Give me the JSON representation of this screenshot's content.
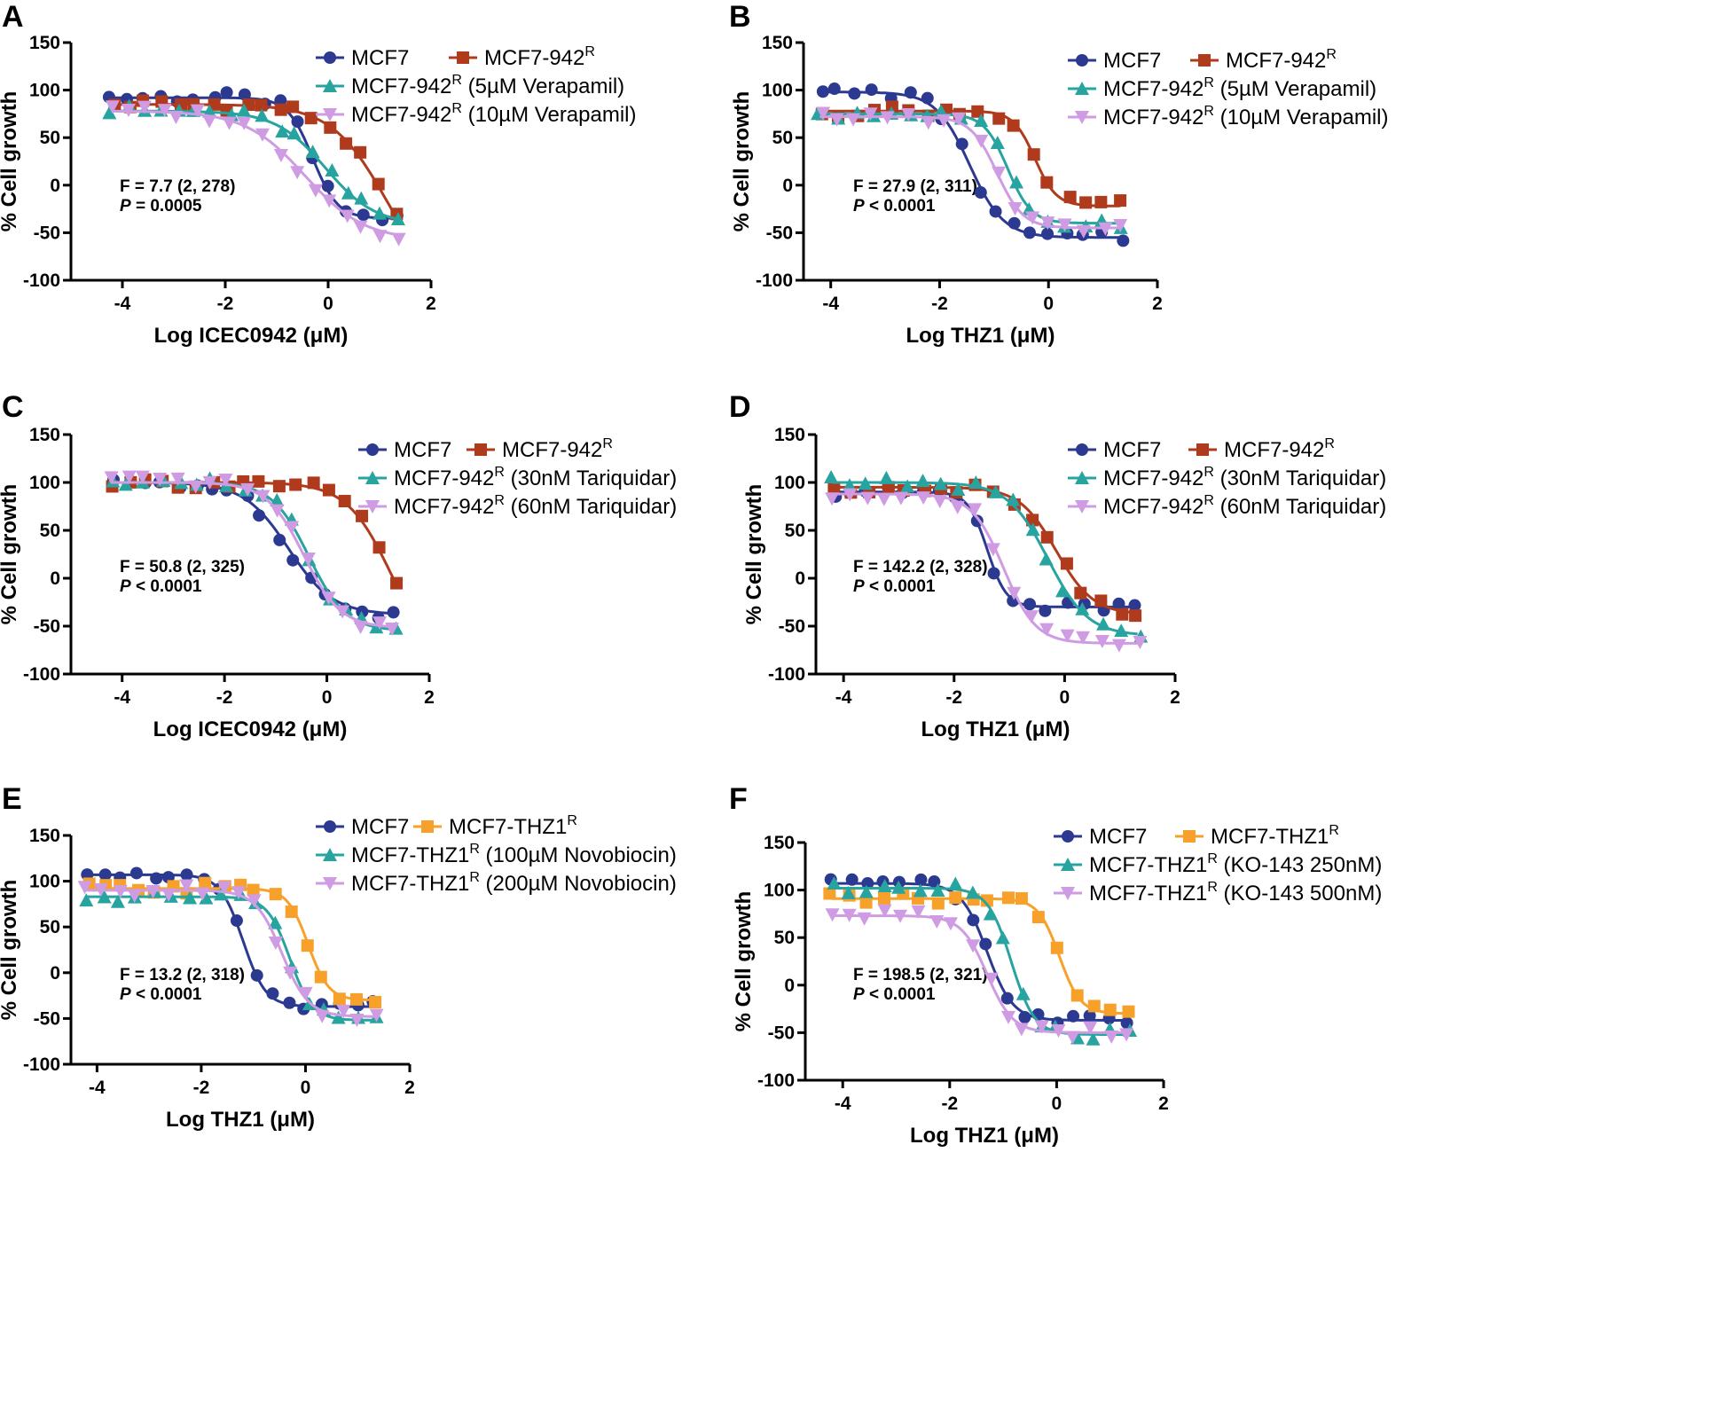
{
  "figure": {
    "panels": [
      "A",
      "B",
      "C",
      "D",
      "E",
      "F"
    ]
  },
  "chart_data": [
    {
      "panel": "A",
      "type": "line",
      "xlabel": "Log ICEC0942 (μM)",
      "ylabel": "% Cell growth",
      "xlim": [
        -5,
        2
      ],
      "ylim": [
        -100,
        150
      ],
      "xticks": [
        -4,
        -2,
        0,
        2
      ],
      "yticks": [
        150,
        100,
        50,
        0,
        -50,
        -100
      ],
      "stat_f": "F = 7.7 (2, 278)",
      "stat_p_label": "P",
      "stat_p_value": "= 0.0005",
      "series": [
        {
          "name": "MCF7",
          "legend_base": "MCF7",
          "legend_sup": "",
          "legend_suffix": "",
          "color": "#2b3990",
          "marker": "circle",
          "curve": {
            "top": 92,
            "bottom": -35,
            "ec50": -0.3,
            "hill": 1.8
          }
        },
        {
          "name": "MCF7-942R",
          "legend_base": "MCF7-942",
          "legend_sup": "R",
          "legend_suffix": "",
          "color": "#b03a1c",
          "marker": "square",
          "curve": {
            "top": 85,
            "bottom": -120,
            "ec50": 1.15,
            "hill": 0.8
          }
        },
        {
          "name": "MCF7-942R (5µM Verapamil)",
          "legend_base": "MCF7-942",
          "legend_sup": "R",
          "legend_suffix": " (5µM Verapamil)",
          "color": "#27a4a0",
          "marker": "triangle-up",
          "curve": {
            "top": 78,
            "bottom": -42,
            "ec50": -0.05,
            "hill": 0.9
          }
        },
        {
          "name": "MCF7-942R (10µM Verapamil)",
          "legend_base": "MCF7-942",
          "legend_sup": "R",
          "legend_suffix": " (10µM Verapamil)",
          "color": "#cf9be3",
          "marker": "triangle-down",
          "curve": {
            "top": 78,
            "bottom": -58,
            "ec50": -0.45,
            "hill": 0.75
          }
        }
      ]
    },
    {
      "panel": "B",
      "type": "line",
      "xlabel": "Log THZ1 (μM)",
      "ylabel": "% Cell growth",
      "xlim": [
        -4.5,
        2
      ],
      "ylim": [
        -100,
        150
      ],
      "xticks": [
        -4,
        -2,
        0,
        2
      ],
      "yticks": [
        150,
        100,
        50,
        0,
        -50,
        -100
      ],
      "stat_f": "F = 27.9 (2, 311)",
      "stat_p_label": "P",
      "stat_p_value": "< 0.0001",
      "series": [
        {
          "name": "MCF7",
          "legend_base": "MCF7",
          "legend_sup": "",
          "legend_suffix": "",
          "color": "#2b3990",
          "marker": "circle",
          "curve": {
            "top": 98,
            "bottom": -55,
            "ec50": -1.45,
            "hill": 1.4
          }
        },
        {
          "name": "MCF7-942R",
          "legend_base": "MCF7-942",
          "legend_sup": "R",
          "legend_suffix": "",
          "color": "#b03a1c",
          "marker": "square",
          "curve": {
            "top": 78,
            "bottom": -22,
            "ec50": -0.25,
            "hill": 2.2
          }
        },
        {
          "name": "MCF7-942R (5µM Verapamil)",
          "legend_base": "MCF7-942",
          "legend_sup": "R",
          "legend_suffix": " (5µM Verapamil)",
          "color": "#27a4a0",
          "marker": "triangle-up",
          "curve": {
            "top": 75,
            "bottom": -40,
            "ec50": -0.75,
            "hill": 2.0
          }
        },
        {
          "name": "MCF7-942R (10µM Verapamil)",
          "legend_base": "MCF7-942",
          "legend_sup": "R",
          "legend_suffix": " (10µM Verapamil)",
          "color": "#cf9be3",
          "marker": "triangle-down",
          "curve": {
            "top": 72,
            "bottom": -45,
            "ec50": -0.95,
            "hill": 1.8
          }
        }
      ]
    },
    {
      "panel": "C",
      "type": "line",
      "xlabel": "Log ICEC0942 (μM)",
      "ylabel": "% Cell growth",
      "xlim": [
        -5,
        2
      ],
      "ylim": [
        -100,
        150
      ],
      "xticks": [
        -4,
        -2,
        0,
        2
      ],
      "yticks": [
        150,
        100,
        50,
        0,
        -50,
        -100
      ],
      "stat_f": "F = 50.8 (2, 325)",
      "stat_p_label": "P",
      "stat_p_value": "< 0.0001",
      "series": [
        {
          "name": "MCF7",
          "legend_base": "MCF7",
          "legend_sup": "",
          "legend_suffix": "",
          "color": "#2b3990",
          "marker": "circle",
          "curve": {
            "top": 100,
            "bottom": -38,
            "ec50": -0.75,
            "hill": 1.0
          }
        },
        {
          "name": "MCF7-942R",
          "legend_base": "MCF7-942",
          "legend_sup": "R",
          "legend_suffix": "",
          "color": "#b03a1c",
          "marker": "square",
          "curve": {
            "top": 100,
            "bottom": -90,
            "ec50": 1.25,
            "hill": 1.0
          }
        },
        {
          "name": "MCF7-942R (30nM Tariquidar)",
          "legend_base": "MCF7-942",
          "legend_sup": "R",
          "legend_suffix": " (30nM Tariquidar)",
          "color": "#27a4a0",
          "marker": "triangle-up",
          "curve": {
            "top": 100,
            "bottom": -55,
            "ec50": -0.35,
            "hill": 1.2
          }
        },
        {
          "name": "MCF7-942R (60nM Tariquidar)",
          "legend_base": "MCF7-942",
          "legend_sup": "R",
          "legend_suffix": " (60nM Tariquidar)",
          "color": "#cf9be3",
          "marker": "triangle-down",
          "curve": {
            "top": 100,
            "bottom": -52,
            "ec50": -0.45,
            "hill": 1.2
          }
        }
      ]
    },
    {
      "panel": "D",
      "type": "line",
      "xlabel": "Log THZ1 (μM)",
      "ylabel": "% Cell growth",
      "xlim": [
        -4.5,
        2
      ],
      "ylim": [
        -100,
        150
      ],
      "xticks": [
        -4,
        -2,
        0,
        2
      ],
      "yticks": [
        150,
        100,
        50,
        0,
        -50,
        -100
      ],
      "stat_f": "F = 142.2 (2, 328)",
      "stat_p_label": "P",
      "stat_p_value": "< 0.0001",
      "series": [
        {
          "name": "MCF7",
          "legend_base": "MCF7",
          "legend_sup": "",
          "legend_suffix": "",
          "color": "#2b3990",
          "marker": "circle",
          "curve": {
            "top": 90,
            "bottom": -30,
            "ec50": -1.4,
            "hill": 2.5
          }
        },
        {
          "name": "MCF7-942R",
          "legend_base": "MCF7-942",
          "legend_sup": "R",
          "legend_suffix": "",
          "color": "#b03a1c",
          "marker": "square",
          "curve": {
            "top": 95,
            "bottom": -38,
            "ec50": -0.15,
            "hill": 1.3
          }
        },
        {
          "name": "MCF7-942R (30nM Tariquidar)",
          "legend_base": "MCF7-942",
          "legend_sup": "R",
          "legend_suffix": " (30nM Tariquidar)",
          "color": "#27a4a0",
          "marker": "triangle-up",
          "curve": {
            "top": 100,
            "bottom": -60,
            "ec50": -0.3,
            "hill": 1.2
          }
        },
        {
          "name": "MCF7-942R (60nM Tariquidar)",
          "legend_base": "MCF7-942",
          "legend_sup": "R",
          "legend_suffix": " (60nM Tariquidar)",
          "color": "#cf9be3",
          "marker": "triangle-down",
          "curve": {
            "top": 88,
            "bottom": -68,
            "ec50": -1.1,
            "hill": 1.5
          }
        }
      ]
    },
    {
      "panel": "E",
      "type": "line",
      "xlabel": "Log THZ1 (μM)",
      "ylabel": "% Cell growth",
      "xlim": [
        -4.5,
        2
      ],
      "ylim": [
        -100,
        150
      ],
      "xticks": [
        -4,
        -2,
        0,
        2
      ],
      "yticks": [
        150,
        100,
        50,
        0,
        -50,
        -100
      ],
      "stat_f": "F = 13.2 (2, 318)",
      "stat_p_label": "P",
      "stat_p_value": "< 0.0001",
      "series": [
        {
          "name": "MCF7",
          "legend_base": "MCF7",
          "legend_sup": "",
          "legend_suffix": "",
          "color": "#2b3990",
          "marker": "circle",
          "curve": {
            "top": 107,
            "bottom": -37,
            "ec50": -1.2,
            "hill": 2.0
          }
        },
        {
          "name": "MCF7-THZ1R",
          "legend_base": "MCF7-THZ1",
          "legend_sup": "R",
          "legend_suffix": "",
          "color": "#f7a12b",
          "marker": "square",
          "curve": {
            "top": 92,
            "bottom": -30,
            "ec50": 0.05,
            "hill": 2.2
          }
        },
        {
          "name": "MCF7-THZ1R (100µM Novobiocin)",
          "legend_base": "MCF7-THZ1",
          "legend_sup": "R",
          "legend_suffix": " (100µM Novobiocin)",
          "color": "#27a4a0",
          "marker": "triangle-up",
          "curve": {
            "top": 83,
            "bottom": -52,
            "ec50": -0.3,
            "hill": 2.0
          }
        },
        {
          "name": "MCF7-THZ1R (200µM Novobiocin)",
          "legend_base": "MCF7-THZ1",
          "legend_sup": "R",
          "legend_suffix": " (200µM Novobiocin)",
          "color": "#cf9be3",
          "marker": "triangle-down",
          "curve": {
            "top": 90,
            "bottom": -48,
            "ec50": -0.45,
            "hill": 1.7
          }
        }
      ]
    },
    {
      "panel": "F",
      "type": "line",
      "xlabel": "Log THZ1 (μM)",
      "ylabel": "% Cell growth",
      "xlim": [
        -4.7,
        2
      ],
      "ylim": [
        -100,
        150
      ],
      "xticks": [
        -4,
        -2,
        0,
        2
      ],
      "yticks": [
        150,
        100,
        50,
        0,
        -50,
        -100
      ],
      "stat_f": "F = 198.5 (2, 321)",
      "stat_p_label": "P",
      "stat_p_value": "< 0.0001",
      "series": [
        {
          "name": "MCF7",
          "legend_base": "MCF7",
          "legend_sup": "",
          "legend_suffix": "",
          "color": "#2b3990",
          "marker": "circle",
          "curve": {
            "top": 107,
            "bottom": -37,
            "ec50": -1.3,
            "hill": 1.8
          }
        },
        {
          "name": "MCF7-THZ1R",
          "legend_base": "MCF7-THZ1",
          "legend_sup": "R",
          "legend_suffix": "",
          "color": "#f7a12b",
          "marker": "square",
          "curve": {
            "top": 91,
            "bottom": -30,
            "ec50": 0.05,
            "hill": 2.2
          }
        },
        {
          "name": "MCF7-THZ1R (KO-143 250nM)",
          "legend_base": "MCF7-THZ1",
          "legend_sup": "R",
          "legend_suffix": " (KO-143 250nM)",
          "color": "#27a4a0",
          "marker": "triangle-up",
          "curve": {
            "top": 102,
            "bottom": -52,
            "ec50": -0.85,
            "hill": 2.0
          }
        },
        {
          "name": "MCF7-THZ1R (KO-143 500nM)",
          "legend_base": "MCF7-THZ1",
          "legend_sup": "R",
          "legend_suffix": " (KO-143 500nM)",
          "color": "#cf9be3",
          "marker": "triangle-down",
          "curve": {
            "top": 73,
            "bottom": -50,
            "ec50": -1.3,
            "hill": 1.8
          }
        }
      ]
    }
  ]
}
